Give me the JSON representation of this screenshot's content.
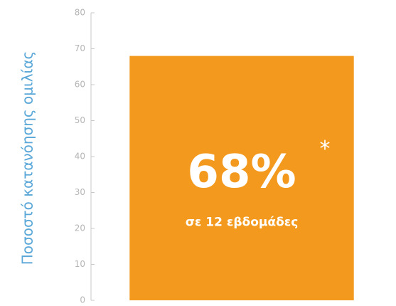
{
  "chart_data": {
    "type": "bar",
    "y_label": "Ποσοστό κατανόησης ομιλίας",
    "categories": [
      null
    ],
    "values": [
      68
    ],
    "value_labels": [
      "68%"
    ],
    "annotations": [
      "*",
      "σε 12 εβδομάδες"
    ],
    "color": "#f39a1e",
    "ylim": [
      0,
      80
    ],
    "yticks": [
      0,
      10,
      20,
      30,
      40,
      50,
      60,
      70,
      80
    ],
    "grid": false
  }
}
